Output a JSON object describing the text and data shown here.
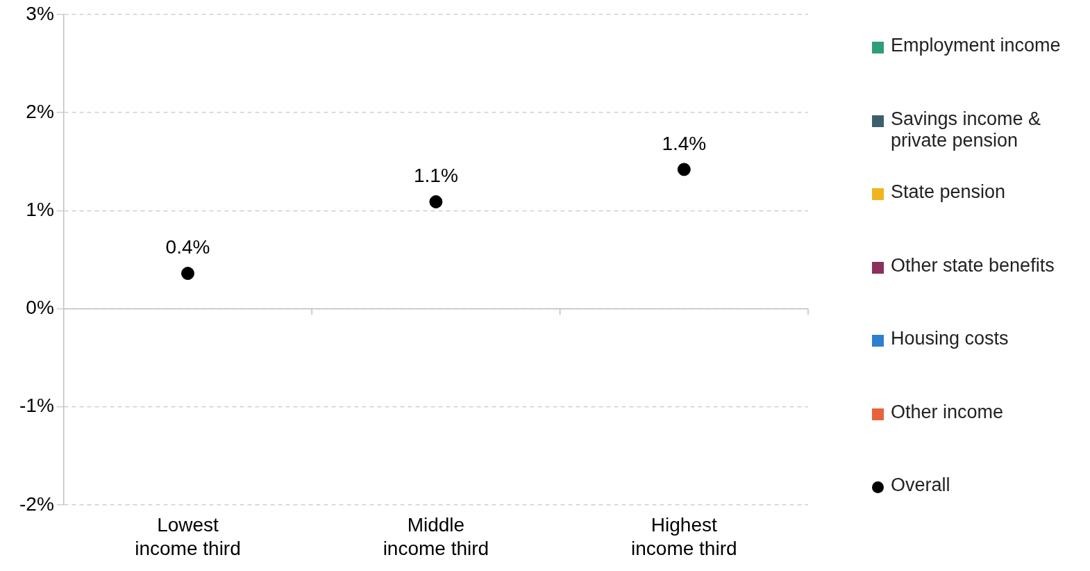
{
  "chart_data": {
    "type": "bar",
    "categories": [
      "Lowest income third",
      "Middle income third",
      "Highest income third"
    ],
    "series": [
      {
        "name": "Employment income",
        "color": "#2e9e78",
        "values": [
          null,
          null,
          null
        ]
      },
      {
        "name": "Savings income & private pension",
        "color": "#3d5f6b",
        "values": [
          null,
          null,
          null
        ]
      },
      {
        "name": "State pension",
        "color": "#f0b41c",
        "values": [
          null,
          null,
          null
        ]
      },
      {
        "name": "Other state benefits",
        "color": "#8c2e5e",
        "values": [
          null,
          null,
          null
        ]
      },
      {
        "name": "Housing costs",
        "color": "#2f7fd0",
        "values": [
          null,
          null,
          null
        ]
      },
      {
        "name": "Other income",
        "color": "#e8613c",
        "values": [
          null,
          null,
          null
        ]
      },
      {
        "name": "Overall",
        "type": "scatter",
        "color": "#000000",
        "values": [
          0.36,
          1.09,
          1.42
        ],
        "value_labels": [
          "0.4%",
          "1.1%",
          "1.4%"
        ]
      }
    ],
    "ylim": [
      -2,
      3
    ],
    "yticks": [
      {
        "value": -2,
        "label": "-2%"
      },
      {
        "value": -1,
        "label": "-1%"
      },
      {
        "value": 0,
        "label": "0%"
      },
      {
        "value": 1,
        "label": "1%"
      },
      {
        "value": 2,
        "label": "2%"
      },
      {
        "value": 3,
        "label": "3%"
      }
    ],
    "grid": "y",
    "legend": "right",
    "marker": "circle"
  }
}
